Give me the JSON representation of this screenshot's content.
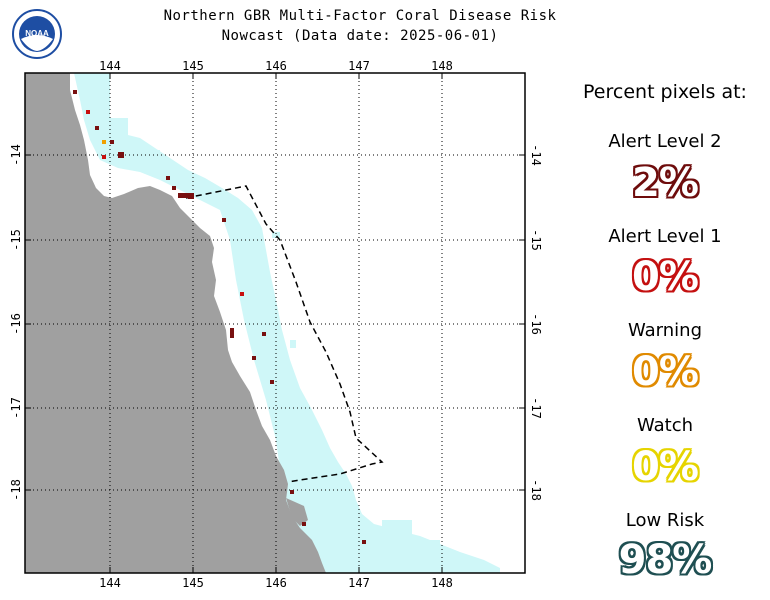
{
  "header": {
    "title": "Northern GBR Multi-Factor Coral Disease Risk",
    "subtitle": "Nowcast (Data date: 2025-06-01)"
  },
  "logo": {
    "text": "NOAA",
    "icon": "noaa-logo-icon",
    "colors": [
      "#1e4ea3",
      "#ffffff"
    ]
  },
  "map": {
    "lon_ticks": [
      "144",
      "145",
      "146",
      "147",
      "148"
    ],
    "lat_ticks": [
      "-14",
      "-15",
      "-16",
      "-17",
      "-18"
    ],
    "colors": {
      "land": "#a0a0a0",
      "low_risk": "#cff7f8",
      "watch": "#f0e000",
      "warning": "#f0a000",
      "alert1": "#c81010",
      "alert2": "#781010",
      "boundary": "#000000"
    }
  },
  "legend": {
    "heading": "Percent pixels at:",
    "levels": [
      {
        "label": "Alert Level 2",
        "value": "2%",
        "stroke": "#6e0c0c"
      },
      {
        "label": "Alert Level 1",
        "value": "0%",
        "stroke": "#c41010"
      },
      {
        "label": "Warning",
        "value": "0%",
        "stroke": "#e08a00"
      },
      {
        "label": "Watch",
        "value": "0%",
        "stroke": "#e6d400"
      },
      {
        "label": "Low Risk",
        "value": "98%",
        "stroke": "#1f4f52"
      }
    ]
  }
}
